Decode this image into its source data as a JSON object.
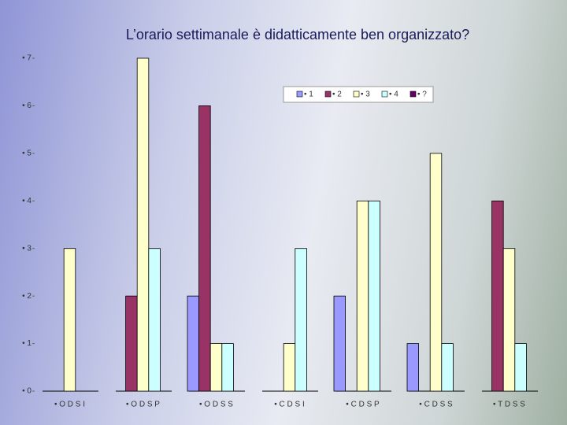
{
  "chart_data": {
    "type": "bar",
    "title": "L’orario settimanale è didatticamente ben organizzato?",
    "categories": [
      "• O D S I",
      "• O D S P",
      "• O D S S",
      "• C D S I",
      "• C D S P",
      "• C D S S",
      "• T D S S"
    ],
    "series": [
      {
        "name": "• 1",
        "color": "#9999ff",
        "values": [
          0,
          0,
          2,
          0,
          2,
          1,
          0
        ]
      },
      {
        "name": "• 2",
        "color": "#993366",
        "values": [
          0,
          2,
          6,
          0,
          0,
          0,
          4
        ]
      },
      {
        "name": "• 3",
        "color": "#ffffcc",
        "values": [
          3,
          7,
          1,
          1,
          4,
          5,
          3
        ]
      },
      {
        "name": "• 4",
        "color": "#ccffff",
        "values": [
          0,
          3,
          1,
          3,
          4,
          1,
          1
        ]
      },
      {
        "name": "• ?",
        "color": "#660066",
        "values": [
          0,
          0,
          0,
          0,
          0,
          0,
          0
        ]
      }
    ],
    "ylim": [
      0,
      7
    ],
    "yticks": [
      {
        "value": 0,
        "label": "• 0"
      },
      {
        "value": 1,
        "label": "• 1"
      },
      {
        "value": 2,
        "label": "• 2"
      },
      {
        "value": 3,
        "label": "• 3"
      },
      {
        "value": 4,
        "label": "• 4"
      },
      {
        "value": 5,
        "label": "• 5"
      },
      {
        "value": 6,
        "label": "• 6"
      },
      {
        "value": 7,
        "label": "• 7"
      }
    ],
    "grid": false,
    "legend": "top-right"
  }
}
